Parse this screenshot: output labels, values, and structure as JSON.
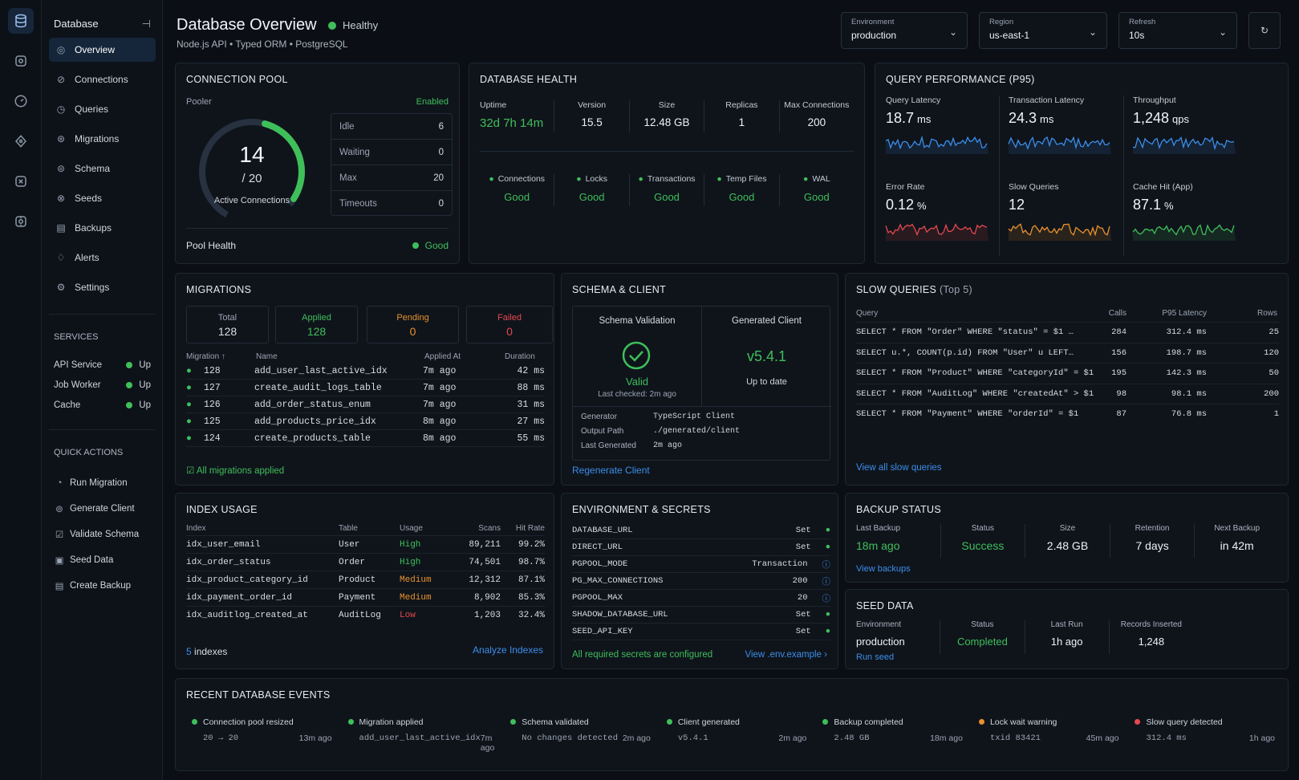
{
  "sidebar": {
    "title": "Database",
    "nav": [
      {
        "label": "Overview"
      },
      {
        "label": "Connections"
      },
      {
        "label": "Queries"
      },
      {
        "label": "Migrations"
      },
      {
        "label": "Schema"
      },
      {
        "label": "Seeds"
      },
      {
        "label": "Backups"
      },
      {
        "label": "Alerts"
      },
      {
        "label": "Settings"
      }
    ],
    "services_title": "SERVICES",
    "services": [
      {
        "name": "API Service",
        "status": "Up"
      },
      {
        "name": "Job Worker",
        "status": "Up"
      },
      {
        "name": "Cache",
        "status": "Up"
      }
    ],
    "quick_title": "QUICK ACTIONS",
    "quick": [
      {
        "label": "Run Migration"
      },
      {
        "label": "Generate Client"
      },
      {
        "label": "Validate Schema"
      },
      {
        "label": "Seed Data"
      },
      {
        "label": "Create Backup"
      }
    ]
  },
  "header": {
    "title": "Database Overview",
    "health": "Healthy",
    "subtitle": "Node.js API  •  Typed ORM  •  PostgreSQL",
    "env_label": "Environment",
    "env": "production",
    "region_label": "Region",
    "region": "us-east-1",
    "refresh_label": "Refresh",
    "refresh": "10s"
  },
  "pool": {
    "title": "CONNECTION POOL",
    "pooler": "Pooler",
    "enabled": "Enabled",
    "active": "14",
    "max_text": "/ 20",
    "active_label": "Active Connections",
    "active_fraction": 0.7,
    "stats": [
      {
        "k": "Idle",
        "v": "6"
      },
      {
        "k": "Waiting",
        "v": "0"
      },
      {
        "k": "Max",
        "v": "20"
      },
      {
        "k": "Timeouts",
        "v": "0"
      }
    ],
    "health_label": "Pool Health",
    "health": "Good"
  },
  "dbhealth": {
    "title": "DATABASE HEALTH",
    "stats": [
      {
        "k": "Uptime",
        "v": "32d 7h 14m"
      },
      {
        "k": "Version",
        "v": "15.5"
      },
      {
        "k": "Size",
        "v": "12.48 GB"
      },
      {
        "k": "Replicas",
        "v": "1"
      },
      {
        "k": "Max Connections",
        "v": "200"
      }
    ],
    "checks": [
      {
        "k": "Connections",
        "v": "Good"
      },
      {
        "k": "Locks",
        "v": "Good"
      },
      {
        "k": "Transactions",
        "v": "Good"
      },
      {
        "k": "Temp Files",
        "v": "Good"
      },
      {
        "k": "WAL",
        "v": "Good"
      }
    ]
  },
  "perf": {
    "title": "QUERY PERFORMANCE (P95)",
    "metrics": [
      {
        "k": "Query Latency",
        "v": "18.7",
        "u": "ms",
        "color": "#3b8eea"
      },
      {
        "k": "Transaction Latency",
        "v": "24.3",
        "u": "ms",
        "color": "#3b8eea"
      },
      {
        "k": "Throughput",
        "v": "1,248",
        "u": "qps",
        "color": "#3b8eea"
      },
      {
        "k": "Error Rate",
        "v": "0.12",
        "u": "%",
        "color": "#e5484d"
      },
      {
        "k": "Slow Queries",
        "v": "12",
        "u": "",
        "color": "#e8912d"
      },
      {
        "k": "Cache Hit (App)",
        "v": "87.1",
        "u": "%",
        "color": "#3fbf5a"
      }
    ]
  },
  "migrations": {
    "title": "MIGRATIONS",
    "summary": [
      {
        "k": "Total",
        "v": "128"
      },
      {
        "k": "Applied",
        "v": "128"
      },
      {
        "k": "Pending",
        "v": "0"
      },
      {
        "k": "Failed",
        "v": "0"
      }
    ],
    "cols": [
      "Migration",
      "Name",
      "Applied At",
      "Duration"
    ],
    "rows": [
      {
        "id": "128",
        "name": "add_user_last_active_idx",
        "at": "7m ago",
        "dur": "42 ms"
      },
      {
        "id": "127",
        "name": "create_audit_logs_table",
        "at": "7m ago",
        "dur": "88 ms"
      },
      {
        "id": "126",
        "name": "add_order_status_enum",
        "at": "7m ago",
        "dur": "31 ms"
      },
      {
        "id": "125",
        "name": "add_products_price_idx",
        "at": "8m ago",
        "dur": "27 ms"
      },
      {
        "id": "124",
        "name": "create_products_table",
        "at": "8m ago",
        "dur": "55 ms"
      }
    ],
    "footer": "All migrations applied"
  },
  "schema": {
    "title": "SCHEMA & CLIENT",
    "validation_label": "Schema Validation",
    "valid": "Valid",
    "checked": "Last checked: 2m ago",
    "client_label": "Generated Client",
    "version": "v5.4.1",
    "uptodate": "Up to date",
    "meta": [
      {
        "k": "Generator",
        "v": "TypeScript Client"
      },
      {
        "k": "Output Path",
        "v": "./generated/client"
      },
      {
        "k": "Last Generated",
        "v": "2m ago"
      }
    ],
    "action": "Regenerate Client"
  },
  "slow": {
    "title": "SLOW QUERIES",
    "suffix": "(Top 5)",
    "cols": [
      "Query",
      "Calls",
      "P95 Latency",
      "Rows"
    ],
    "rows": [
      {
        "q": "SELECT * FROM \"Order\" WHERE \"status\" = $1 …",
        "calls": "284",
        "lat": "312.4 ms",
        "rows": "25"
      },
      {
        "q": "SELECT u.*, COUNT(p.id) FROM \"User\" u LEFT…",
        "calls": "156",
        "lat": "198.7 ms",
        "rows": "120"
      },
      {
        "q": "SELECT * FROM \"Product\" WHERE \"categoryId\" = $1",
        "calls": "195",
        "lat": "142.3 ms",
        "rows": "50"
      },
      {
        "q": "SELECT * FROM \"AuditLog\" WHERE \"createdAt\" > $1",
        "calls": "98",
        "lat": "98.1 ms",
        "rows": "200"
      },
      {
        "q": "SELECT * FROM \"Payment\" WHERE \"orderId\" = $1",
        "calls": "87",
        "lat": "76.8 ms",
        "rows": "1"
      }
    ],
    "link": "View all slow queries"
  },
  "index": {
    "title": "INDEX USAGE",
    "cols": [
      "Index",
      "Table",
      "Usage",
      "Scans",
      "Hit Rate"
    ],
    "rows": [
      {
        "i": "idx_user_email",
        "t": "User",
        "u": "High",
        "s": "89,211",
        "h": "99.2%",
        "c": "#3fbf5a"
      },
      {
        "i": "idx_order_status",
        "t": "Order",
        "u": "High",
        "s": "74,501",
        "h": "98.7%",
        "c": "#3fbf5a"
      },
      {
        "i": "idx_product_category_id",
        "t": "Product",
        "u": "Medium",
        "s": "12,312",
        "h": "87.1%",
        "c": "#e8912d"
      },
      {
        "i": "idx_payment_order_id",
        "t": "Payment",
        "u": "Medium",
        "s": "8,902",
        "h": "85.3%",
        "c": "#e8912d"
      },
      {
        "i": "idx_auditlog_created_at",
        "t": "AuditLog",
        "u": "Low",
        "s": "1,203",
        "h": "32.4%",
        "c": "#e5484d"
      }
    ],
    "count": "5",
    "count_label": "indexes",
    "action": "Analyze Indexes"
  },
  "env": {
    "title": "ENVIRONMENT & SECRETS",
    "rows": [
      {
        "k": "DATABASE_URL",
        "v": "Set",
        "t": "ok"
      },
      {
        "k": "DIRECT_URL",
        "v": "Set",
        "t": "ok"
      },
      {
        "k": "PGPOOL_MODE",
        "v": "Transaction",
        "t": "info"
      },
      {
        "k": "PG_MAX_CONNECTIONS",
        "v": "200",
        "t": "info"
      },
      {
        "k": "PGPOOL_MAX",
        "v": "20",
        "t": "info"
      },
      {
        "k": "SHADOW_DATABASE_URL",
        "v": "Set",
        "t": "ok"
      },
      {
        "k": "SEED_API_KEY",
        "v": "Set",
        "t": "ok"
      }
    ],
    "footer": "All required secrets are configured",
    "link": "View .env.example"
  },
  "backup": {
    "title": "BACKUP STATUS",
    "stats": [
      {
        "k": "Last Backup",
        "v": "18m ago"
      },
      {
        "k": "Status",
        "v": "Success"
      },
      {
        "k": "Size",
        "v": "2.48 GB"
      },
      {
        "k": "Retention",
        "v": "7 days"
      },
      {
        "k": "Next Backup",
        "v": "in 42m"
      }
    ],
    "link": "View backups"
  },
  "seed": {
    "title": "SEED DATA",
    "stats": [
      {
        "k": "Environment",
        "v": "production"
      },
      {
        "k": "Status",
        "v": "Completed"
      },
      {
        "k": "Last Run",
        "v": "1h ago"
      },
      {
        "k": "Records Inserted",
        "v": "1,248"
      }
    ],
    "link": "Run seed"
  },
  "events": {
    "title": "RECENT DATABASE EVENTS",
    "items": [
      {
        "t": "Connection pool resized",
        "d": "20 → 20",
        "ago": "13m ago",
        "c": "#3fbf5a"
      },
      {
        "t": "Migration applied",
        "d": "add_user_last_active_idx",
        "ago": "7m ago",
        "c": "#3fbf5a"
      },
      {
        "t": "Schema validated",
        "d": "No changes detected",
        "ago": "2m ago",
        "c": "#3fbf5a"
      },
      {
        "t": "Client generated",
        "d": "v5.4.1",
        "ago": "2m ago",
        "c": "#3fbf5a"
      },
      {
        "t": "Backup completed",
        "d": "2.48 GB",
        "ago": "18m ago",
        "c": "#3fbf5a"
      },
      {
        "t": "Lock wait warning",
        "d": "txid 83421",
        "ago": "45m ago",
        "c": "#e8912d"
      },
      {
        "t": "Slow query detected",
        "d": "312.4 ms",
        "ago": "1h ago",
        "c": "#e5484d"
      }
    ]
  }
}
